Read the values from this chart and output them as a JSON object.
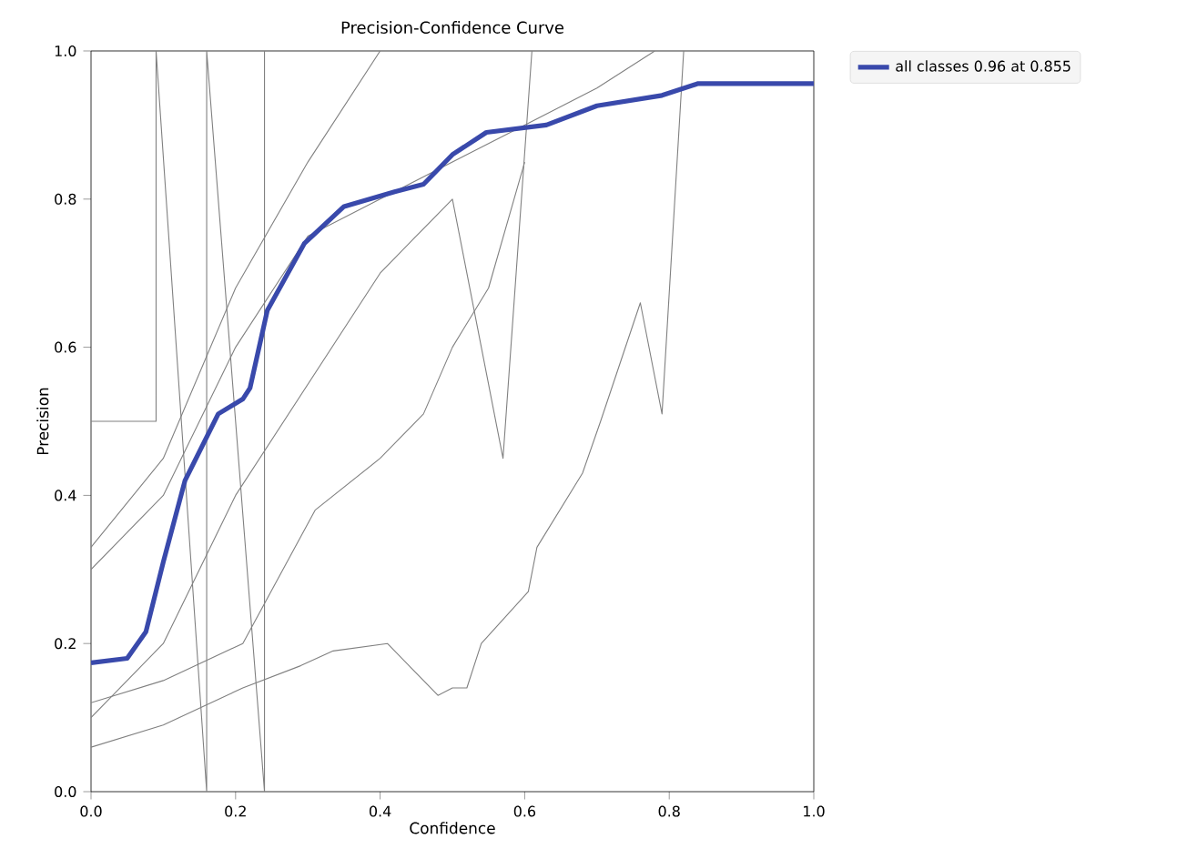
{
  "chart_data": {
    "type": "line",
    "title": "Precision-Confidence Curve",
    "xlabel": "Confidence",
    "ylabel": "Precision",
    "xlim": [
      0,
      1
    ],
    "ylim": [
      0,
      1
    ],
    "xticks": [
      {
        "value": 0,
        "label": "0.0"
      },
      {
        "value": 0.2,
        "label": "0.2"
      },
      {
        "value": 0.4,
        "label": "0.4"
      },
      {
        "value": 0.6,
        "label": "0.6"
      },
      {
        "value": 0.8,
        "label": "0.8"
      },
      {
        "value": 1,
        "label": "1.0"
      }
    ],
    "yticks": [
      {
        "value": 0,
        "label": "0.0"
      },
      {
        "value": 0.2,
        "label": "0.2"
      },
      {
        "value": 0.4,
        "label": "0.4"
      },
      {
        "value": 0.6,
        "label": "0.6"
      },
      {
        "value": 0.8,
        "label": "0.8"
      },
      {
        "value": 1,
        "label": "1.0"
      }
    ],
    "legend": "top right",
    "series": [
      {
        "color": "#808080",
        "x": [
          0,
          0.1,
          0.21,
          0.29,
          0.335,
          0.41,
          0.46,
          0.48,
          0.5,
          0.52,
          0.54,
          0.605,
          0.617,
          0.68,
          0.705,
          0.76,
          0.79,
          0.82
        ],
        "values": [
          0.06,
          0.09,
          0.14,
          0.17,
          0.19,
          0.2,
          0.15,
          0.13,
          0.14,
          0.14,
          0.2,
          0.27,
          0.33,
          0.43,
          0.5,
          0.66,
          0.51,
          1.0
        ]
      },
      {
        "color": "#808080",
        "x": [
          0,
          0.1,
          0.21,
          0.31,
          0.4,
          0.46,
          0.5,
          0.55,
          0.6
        ],
        "values": [
          0.12,
          0.15,
          0.2,
          0.38,
          0.45,
          0.51,
          0.6,
          0.68,
          0.85
        ]
      },
      {
        "color": "#808080",
        "x": [
          0,
          0.1,
          0.2,
          0.3,
          0.4,
          0.5,
          0.6,
          0.7,
          0.78
        ],
        "values": [
          0.3,
          0.4,
          0.6,
          0.75,
          0.8,
          0.85,
          0.9,
          0.95,
          1.0
        ]
      },
      {
        "color": "#808080",
        "x": [
          0,
          0.1,
          0.2,
          0.3,
          0.4
        ],
        "values": [
          0.33,
          0.45,
          0.68,
          0.85,
          1.0
        ]
      },
      {
        "color": "#808080",
        "x": [
          0,
          0.1,
          0.2,
          0.3,
          0.4,
          0.45,
          0.5,
          0.57,
          0.61
        ],
        "values": [
          0.1,
          0.2,
          0.4,
          0.55,
          0.7,
          0.75,
          0.8,
          0.45,
          1.0
        ]
      },
      {
        "color": "#808080",
        "x": [
          0,
          0.09,
          0.09,
          0.16,
          0.16,
          0.24,
          0.24
        ],
        "values": [
          0.5,
          0.5,
          1.0,
          0.0,
          1.0,
          0.0,
          1.0
        ]
      },
      {
        "name": "all classes 0.96 at 0.855",
        "color": "#3949ab",
        "x": [
          0,
          0.05,
          0.076,
          0.1,
          0.13,
          0.176,
          0.21,
          0.22,
          0.244,
          0.295,
          0.35,
          0.42,
          0.46,
          0.5,
          0.547,
          0.63,
          0.7,
          0.79,
          0.84,
          1.0
        ],
        "values": [
          0.174,
          0.18,
          0.216,
          0.31,
          0.42,
          0.51,
          0.53,
          0.545,
          0.65,
          0.74,
          0.79,
          0.81,
          0.82,
          0.86,
          0.89,
          0.9,
          0.926,
          0.94,
          0.956,
          0.956
        ]
      }
    ]
  }
}
